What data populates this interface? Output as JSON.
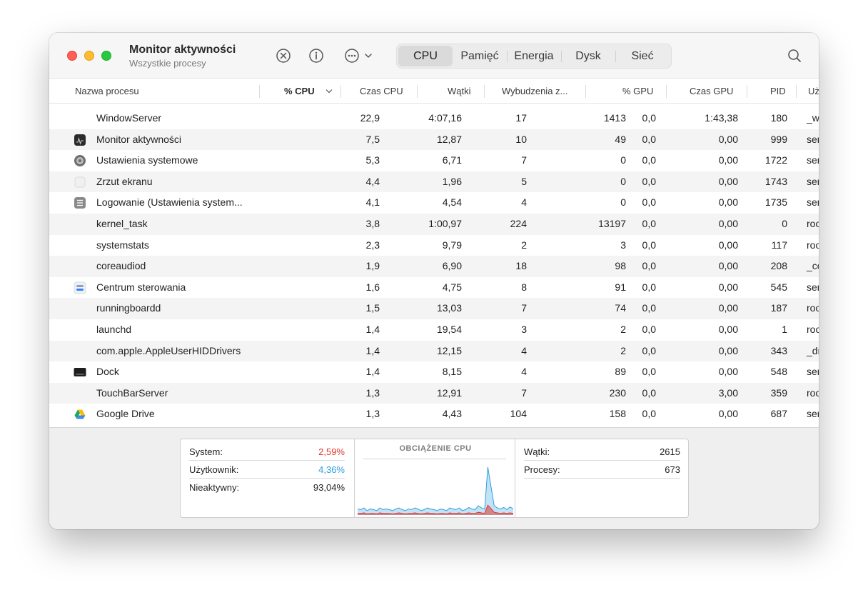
{
  "window": {
    "title": "Monitor aktywności",
    "subtitle": "Wszystkie procesy"
  },
  "toolbar": {
    "stop_icon": "x-circle-icon",
    "info_icon": "info-circle-icon",
    "more_icon": "ellipsis-circle-icon",
    "search_icon": "magnifier-icon",
    "tabs": [
      {
        "label": "CPU",
        "active": true
      },
      {
        "label": "Pamięć",
        "active": false
      },
      {
        "label": "Energia",
        "active": false
      },
      {
        "label": "Dysk",
        "active": false
      },
      {
        "label": "Sieć",
        "active": false
      }
    ]
  },
  "table": {
    "columns": [
      "Nazwa procesu",
      "% CPU",
      "Czas CPU",
      "Wątki",
      "Wybudzenia z...",
      "% GPU",
      "Czas GPU",
      "PID",
      "Uż"
    ],
    "sorted_column": "% CPU",
    "rows": [
      {
        "name": "WindowServer",
        "icon": "",
        "cpu": "22,9",
        "cpu_time": "4:07,16",
        "threads": "17",
        "wakeups": "1413",
        "gpu": "0,0",
        "gpu_time": "1:43,38",
        "pid": "180",
        "user": "_w"
      },
      {
        "name": "Monitor aktywności",
        "icon": "activity-monitor-icon",
        "cpu": "7,5",
        "cpu_time": "12,87",
        "threads": "10",
        "wakeups": "49",
        "gpu": "0,0",
        "gpu_time": "0,00",
        "pid": "999",
        "user": "ser"
      },
      {
        "name": "Ustawienia systemowe",
        "icon": "system-settings-icon",
        "cpu": "5,3",
        "cpu_time": "6,71",
        "threads": "7",
        "wakeups": "0",
        "gpu": "0,0",
        "gpu_time": "0,00",
        "pid": "1722",
        "user": "ser"
      },
      {
        "name": "Zrzut ekranu",
        "icon": "screenshot-icon",
        "cpu": "4,4",
        "cpu_time": "1,96",
        "threads": "5",
        "wakeups": "0",
        "gpu": "0,0",
        "gpu_time": "0,00",
        "pid": "1743",
        "user": "ser"
      },
      {
        "name": "Logowanie (Ustawienia system...",
        "icon": "login-items-icon",
        "cpu": "4,1",
        "cpu_time": "4,54",
        "threads": "4",
        "wakeups": "0",
        "gpu": "0,0",
        "gpu_time": "0,00",
        "pid": "1735",
        "user": "ser"
      },
      {
        "name": "kernel_task",
        "icon": "",
        "cpu": "3,8",
        "cpu_time": "1:00,97",
        "threads": "224",
        "wakeups": "13197",
        "gpu": "0,0",
        "gpu_time": "0,00",
        "pid": "0",
        "user": "roo"
      },
      {
        "name": "systemstats",
        "icon": "",
        "cpu": "2,3",
        "cpu_time": "9,79",
        "threads": "2",
        "wakeups": "3",
        "gpu": "0,0",
        "gpu_time": "0,00",
        "pid": "117",
        "user": "roo"
      },
      {
        "name": "coreaudiod",
        "icon": "",
        "cpu": "1,9",
        "cpu_time": "6,90",
        "threads": "18",
        "wakeups": "98",
        "gpu": "0,0",
        "gpu_time": "0,00",
        "pid": "208",
        "user": "_co"
      },
      {
        "name": "Centrum sterowania",
        "icon": "control-center-icon",
        "cpu": "1,6",
        "cpu_time": "4,75",
        "threads": "8",
        "wakeups": "91",
        "gpu": "0,0",
        "gpu_time": "0,00",
        "pid": "545",
        "user": "ser"
      },
      {
        "name": "runningboardd",
        "icon": "",
        "cpu": "1,5",
        "cpu_time": "13,03",
        "threads": "7",
        "wakeups": "74",
        "gpu": "0,0",
        "gpu_time": "0,00",
        "pid": "187",
        "user": "roo"
      },
      {
        "name": "launchd",
        "icon": "",
        "cpu": "1,4",
        "cpu_time": "19,54",
        "threads": "3",
        "wakeups": "2",
        "gpu": "0,0",
        "gpu_time": "0,00",
        "pid": "1",
        "user": "roo"
      },
      {
        "name": "com.apple.AppleUserHIDDrivers",
        "icon": "",
        "cpu": "1,4",
        "cpu_time": "12,15",
        "threads": "4",
        "wakeups": "2",
        "gpu": "0,0",
        "gpu_time": "0,00",
        "pid": "343",
        "user": "_dr"
      },
      {
        "name": "Dock",
        "icon": "dock-icon",
        "cpu": "1,4",
        "cpu_time": "8,15",
        "threads": "4",
        "wakeups": "89",
        "gpu": "0,0",
        "gpu_time": "0,00",
        "pid": "548",
        "user": "ser"
      },
      {
        "name": "TouchBarServer",
        "icon": "",
        "cpu": "1,3",
        "cpu_time": "12,91",
        "threads": "7",
        "wakeups": "230",
        "gpu": "0,0",
        "gpu_time": "3,00",
        "pid": "359",
        "user": "roo"
      },
      {
        "name": "Google Drive",
        "icon": "google-drive-icon",
        "cpu": "1,3",
        "cpu_time": "4,43",
        "threads": "104",
        "wakeups": "158",
        "gpu": "0,0",
        "gpu_time": "0,00",
        "pid": "687",
        "user": "ser"
      }
    ]
  },
  "summary": {
    "left": [
      {
        "label": "System:",
        "value": "2,59%",
        "color": "#e0382c"
      },
      {
        "label": "Użytkownik:",
        "value": "4,36%",
        "color": "#2f9fe0"
      },
      {
        "label": "Nieaktywny:",
        "value": "93,04%",
        "color": "#222222"
      }
    ],
    "graph_title": "OBCIĄŻENIE CPU",
    "right": [
      {
        "label": "Wątki:",
        "value": "2615"
      },
      {
        "label": "Procesy:",
        "value": "673"
      }
    ]
  },
  "chart_data": {
    "type": "area",
    "title": "OBCIĄŻENIE CPU",
    "ylim": [
      0,
      100
    ],
    "series": [
      {
        "name": "Użytkownik",
        "color": "#2f9fe0",
        "values": [
          8,
          7,
          9,
          6,
          8,
          7,
          6,
          9,
          7,
          8,
          7,
          6,
          8,
          9,
          7,
          6,
          8,
          7,
          9,
          8,
          6,
          7,
          9,
          8,
          7,
          6,
          8,
          7,
          6,
          9,
          8,
          7,
          9,
          6,
          7,
          10,
          8,
          7,
          12,
          9,
          8,
          70,
          40,
          12,
          9,
          8,
          10,
          7,
          11,
          8
        ]
      },
      {
        "name": "System",
        "color": "#e0382c",
        "values": [
          3,
          3,
          4,
          2,
          3,
          3,
          2,
          4,
          3,
          3,
          3,
          2,
          3,
          4,
          3,
          2,
          3,
          3,
          4,
          3,
          2,
          3,
          4,
          3,
          3,
          2,
          3,
          3,
          2,
          4,
          3,
          3,
          4,
          2,
          3,
          4,
          3,
          3,
          5,
          4,
          3,
          18,
          12,
          5,
          4,
          3,
          4,
          3,
          4,
          3
        ]
      }
    ]
  }
}
